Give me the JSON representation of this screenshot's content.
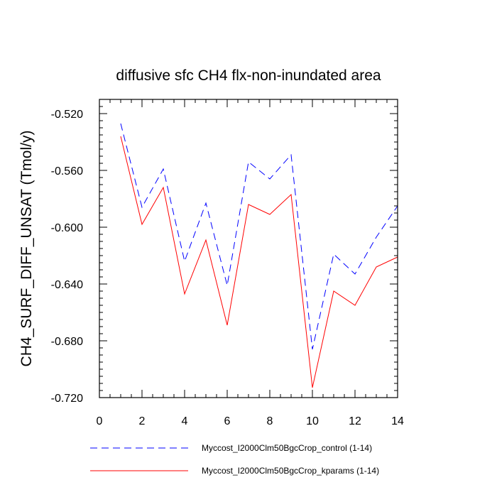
{
  "chart_data": {
    "type": "line",
    "title": "diffusive sfc CH4 flx-non-inundated area",
    "xlabel": "",
    "ylabel": "CH4_SURF_DIFF_UNSAT  (Tmol/y)",
    "xlim": [
      0,
      14
    ],
    "ylim": [
      -0.72,
      -0.51
    ],
    "x_ticks": [
      0,
      2,
      4,
      6,
      8,
      10,
      12,
      14
    ],
    "x_tick_labels": [
      "0",
      "2",
      "4",
      "6",
      "8",
      "10",
      "12",
      "14"
    ],
    "y_ticks": [
      -0.52,
      -0.56,
      -0.6,
      -0.64,
      -0.68,
      -0.72
    ],
    "y_tick_labels": [
      "-0.520",
      "-0.560",
      "-0.600",
      "-0.640",
      "-0.680",
      "-0.720"
    ],
    "x": [
      1,
      2,
      3,
      4,
      5,
      6,
      7,
      8,
      9,
      10,
      11,
      12,
      13,
      14
    ],
    "series": [
      {
        "name": "Myccost_I2000Clm50BgcCrop_control (1-14)",
        "color": "#0000ff",
        "dash": "dashed",
        "values": [
          -0.527,
          -0.586,
          -0.559,
          -0.624,
          -0.583,
          -0.641,
          -0.554,
          -0.566,
          -0.549,
          -0.686,
          -0.619,
          -0.633,
          -0.607,
          -0.585
        ]
      },
      {
        "name": "Myccost_I2000Clm50BgcCrop_kparams (1-14)",
        "color": "#ff0000",
        "dash": "solid",
        "values": [
          -0.536,
          -0.598,
          -0.572,
          -0.647,
          -0.609,
          -0.669,
          -0.584,
          -0.591,
          -0.577,
          -0.713,
          -0.645,
          -0.655,
          -0.628,
          -0.621
        ]
      }
    ],
    "legend_position": "bottom"
  }
}
